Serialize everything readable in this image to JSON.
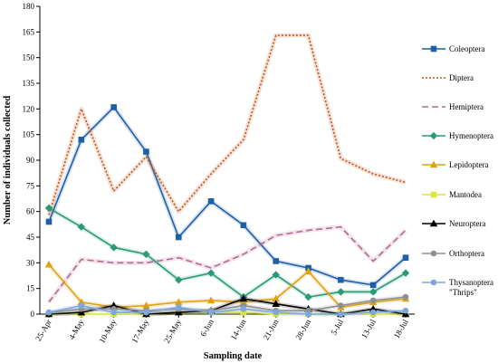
{
  "chart_data": {
    "type": "line",
    "xlabel": "Sampling date",
    "ylabel": "Number of individuals collected",
    "ylim": [
      0,
      180
    ],
    "yticks": [
      0,
      15,
      30,
      45,
      60,
      75,
      90,
      105,
      120,
      135,
      150,
      165,
      180
    ],
    "categories": [
      "25-Apr",
      "4-May",
      "10-May",
      "17-May",
      "25-May",
      "6-Jun",
      "14-Jun",
      "21-Jun",
      "28-Jun",
      "5-Jul",
      "13-Jul",
      "18-Jul"
    ],
    "grid": false,
    "legend": "right",
    "series": [
      {
        "name": "Coleoptera",
        "color": "#1f5fa8",
        "dash": "",
        "marker": "square",
        "values": [
          54,
          102,
          121,
          95,
          45,
          66,
          52,
          31,
          27,
          20,
          17,
          33
        ]
      },
      {
        "name": "Diptera",
        "color": "#c0581f",
        "dash": "2,2",
        "marker": "none",
        "values": [
          58,
          120,
          72,
          92,
          60,
          82,
          102,
          163,
          163,
          91,
          82,
          77
        ]
      },
      {
        "name": "Hemiptera",
        "color": "#b56a90",
        "dash": "7,4",
        "marker": "none",
        "values": [
          7,
          32,
          30,
          30,
          33,
          27,
          35,
          46,
          49,
          51,
          31,
          49
        ]
      },
      {
        "name": "Hymenoptera",
        "color": "#2a9a78",
        "dash": "",
        "marker": "diamond",
        "values": [
          62,
          51,
          39,
          35,
          20,
          24,
          10,
          23,
          10,
          13,
          13,
          24
        ]
      },
      {
        "name": "Lepidoptera",
        "color": "#e0a214",
        "dash": "",
        "marker": "triangle",
        "values": [
          29,
          7,
          4,
          5,
          7,
          8,
          7,
          9,
          25,
          4,
          7,
          9
        ]
      },
      {
        "name": "Mantodea",
        "color": "#d9e83a",
        "dash": "",
        "marker": "square",
        "values": [
          0,
          0,
          0,
          0,
          1,
          1,
          1,
          0,
          0,
          0,
          0,
          0
        ]
      },
      {
        "name": "Neuroptera",
        "color": "#000000",
        "dash": "",
        "marker": "triangle",
        "values": [
          0,
          1,
          5,
          0,
          1,
          2,
          9,
          6,
          3,
          0,
          3,
          0
        ]
      },
      {
        "name": "Orthoptera",
        "color": "#8f8f8f",
        "dash": "",
        "marker": "circle",
        "values": [
          1,
          3,
          3,
          2,
          3,
          2,
          5,
          2,
          2,
          5,
          8,
          10
        ]
      },
      {
        "name": "Thysanoptera",
        "name_line2": "\"Thrips\"",
        "color": "#7ea6e0",
        "dash": "",
        "marker": "circle",
        "values": [
          1,
          5,
          1,
          1,
          4,
          1,
          3,
          1,
          0,
          0,
          1,
          2
        ]
      }
    ]
  }
}
